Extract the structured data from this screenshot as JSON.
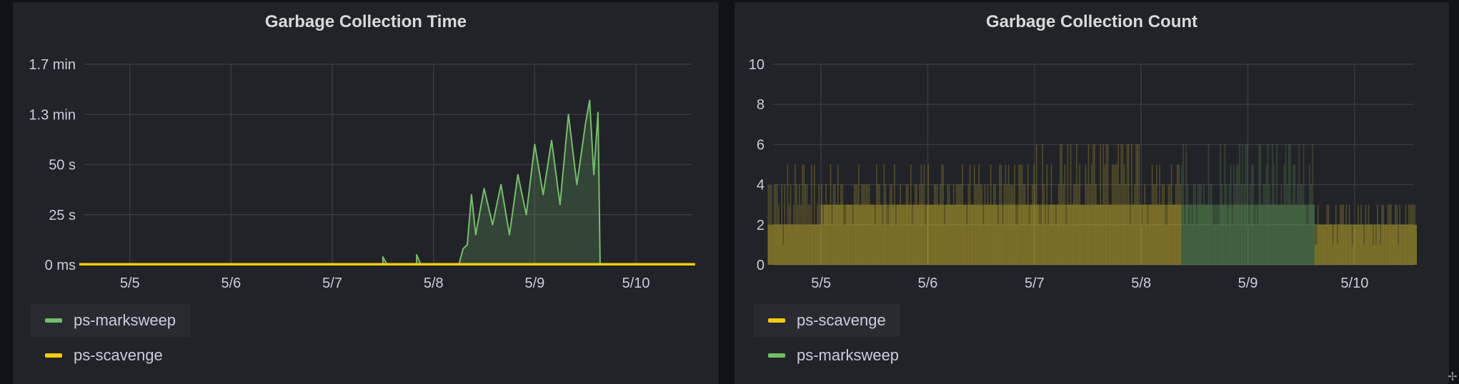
{
  "colors": {
    "green": "#73bf69",
    "yellow": "#f2cc0c",
    "orange": "#fade2a"
  },
  "chart_data": [
    {
      "type": "area",
      "title": "Garbage Collection Time",
      "x_categories": [
        "5/5",
        "5/6",
        "5/7",
        "5/8",
        "5/9",
        "5/10"
      ],
      "y_unit": "seconds",
      "ylim": [
        0,
        100
      ],
      "y_ticks": [
        {
          "value": 0,
          "label": "0 ms"
        },
        {
          "value": 25,
          "label": "25 s"
        },
        {
          "value": 50,
          "label": "50 s"
        },
        {
          "value": 75,
          "label": "1.3 min"
        },
        {
          "value": 100,
          "label": "1.7 min"
        }
      ],
      "grid": true,
      "legend": "bottom-left",
      "series": [
        {
          "name": "ps-marksweep",
          "color": "#73bf69",
          "points": [
            [
              "5/4 12:00",
              0
            ],
            [
              "5/7 12:00",
              0
            ],
            [
              "5/7 12:00",
              4
            ],
            [
              "5/7 13:00",
              0
            ],
            [
              "5/7 20:00",
              0
            ],
            [
              "5/7 20:00",
              5
            ],
            [
              "5/7 21:00",
              0
            ],
            [
              "5/8 06:00",
              0
            ],
            [
              "5/8 07:00",
              8
            ],
            [
              "5/8 08:00",
              10
            ],
            [
              "5/8 09:00",
              35
            ],
            [
              "5/8 10:00",
              15
            ],
            [
              "5/8 12:00",
              38
            ],
            [
              "5/8 14:00",
              20
            ],
            [
              "5/8 16:00",
              40
            ],
            [
              "5/8 18:00",
              15
            ],
            [
              "5/8 20:00",
              45
            ],
            [
              "5/8 22:00",
              25
            ],
            [
              "5/9 00:00",
              60
            ],
            [
              "5/9 02:00",
              35
            ],
            [
              "5/9 04:00",
              62
            ],
            [
              "5/9 06:00",
              30
            ],
            [
              "5/9 08:00",
              75
            ],
            [
              "5/9 10:00",
              40
            ],
            [
              "5/9 12:00",
              70
            ],
            [
              "5/9 13:00",
              82
            ],
            [
              "5/9 14:00",
              45
            ],
            [
              "5/9 15:00",
              76
            ],
            [
              "5/9 15:30",
              0
            ],
            [
              "5/10 14:00",
              0
            ]
          ]
        },
        {
          "name": "ps-scavenge",
          "color": "#f2cc0c",
          "points": [
            [
              "5/4 12:00",
              0.3
            ],
            [
              "5/10 14:00",
              0.3
            ]
          ]
        }
      ],
      "legend_items": [
        "ps-marksweep",
        "ps-scavenge"
      ]
    },
    {
      "type": "bar",
      "title": "Garbage Collection Count",
      "x_categories": [
        "5/5",
        "5/6",
        "5/7",
        "5/8",
        "5/9",
        "5/10"
      ],
      "ylim": [
        0,
        10
      ],
      "y_ticks": [
        0,
        2,
        4,
        6,
        8,
        10
      ],
      "grid": true,
      "legend": "bottom-left",
      "series": [
        {
          "name": "ps-scavenge",
          "color": "#fade2a",
          "segments": [
            {
              "from": "5/4 12:00",
              "to": "5/5 00:00",
              "typical": 2,
              "peak": 5
            },
            {
              "from": "5/5 00:00",
              "to": "5/6 00:00",
              "typical": 3,
              "peak": 5
            },
            {
              "from": "5/6 00:00",
              "to": "5/7 00:00",
              "typical": 3,
              "peak": 5
            },
            {
              "from": "5/7 00:00",
              "to": "5/8 00:00",
              "typical": 3,
              "peak": 6
            },
            {
              "from": "5/8 00:00",
              "to": "5/8 09:00",
              "typical": 3,
              "peak": 5
            },
            {
              "from": "5/9 15:00",
              "to": "5/10 14:00",
              "typical": 2,
              "peak": 3
            }
          ]
        },
        {
          "name": "ps-marksweep",
          "color": "#73bf69",
          "segments": [
            {
              "from": "5/8 09:00",
              "to": "5/9 15:00",
              "typical": 3,
              "peak": 6
            }
          ]
        }
      ],
      "legend_items": [
        "ps-scavenge",
        "ps-marksweep"
      ]
    }
  ]
}
